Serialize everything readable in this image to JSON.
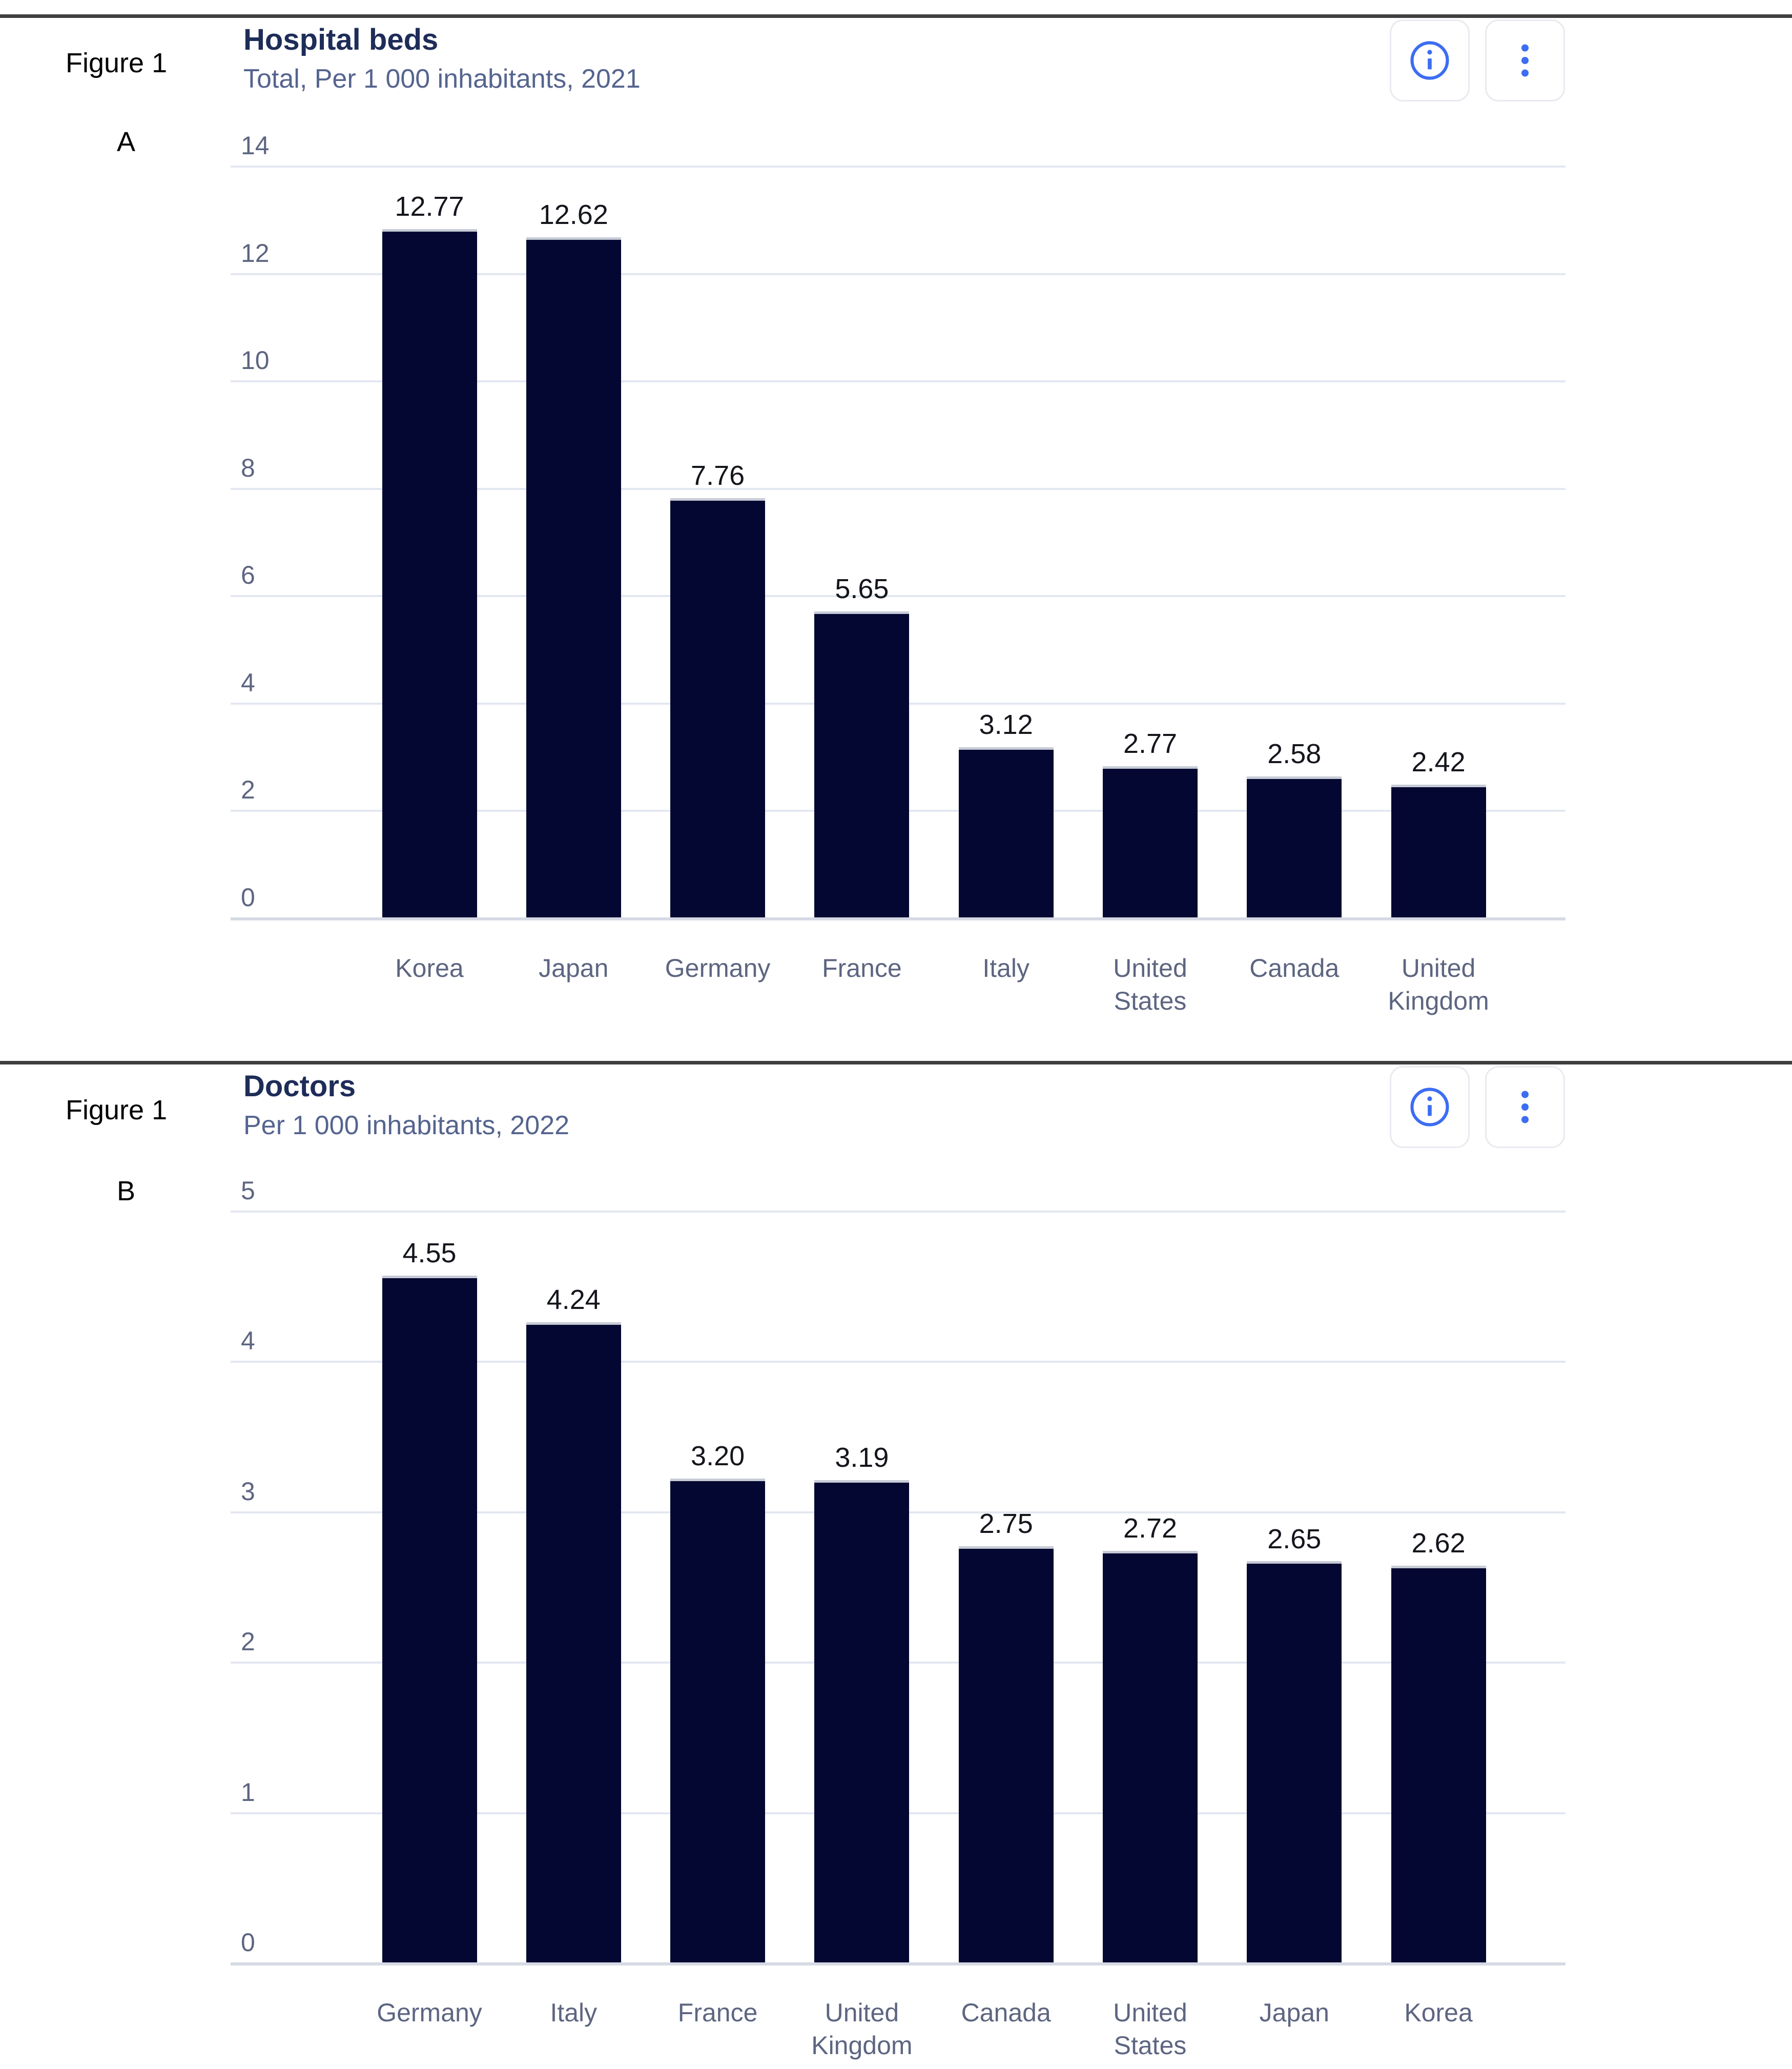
{
  "panels": [
    {
      "figure_label": "Figure 1",
      "panel_letter": "A",
      "title": "Hospital beds",
      "subtitle": "Total, Per 1 000 inhabitants, 2021"
    },
    {
      "figure_label": "Figure 1",
      "panel_letter": "B",
      "title": "Doctors",
      "subtitle": "Per 1 000 inhabitants, 2022"
    }
  ],
  "toolbar": {
    "info_icon": "info-circle-icon",
    "menu_icon": "kebab-menu-icon"
  },
  "colors": {
    "bar": "#030731",
    "accent_blue": "#3c6df2",
    "title_navy": "#1e2c58",
    "subtitle_slate": "#55648f",
    "axis_text": "#5d6581",
    "gridline": "#e3e7f0",
    "divider": "#3e3e3e",
    "value_label": "#14161c"
  },
  "chart_data": [
    {
      "type": "bar",
      "title": "Hospital beds",
      "subtitle": "Total, Per 1 000 inhabitants, 2021",
      "categories": [
        "Korea",
        "Japan",
        "Germany",
        "France",
        "Italy",
        "United States",
        "Canada",
        "United Kingdom"
      ],
      "values": [
        12.77,
        12.62,
        7.76,
        5.65,
        3.12,
        2.77,
        2.58,
        2.42
      ],
      "value_labels": [
        "12.77",
        "12.62",
        "7.76",
        "5.65",
        "3.12",
        "2.77",
        "2.58",
        "2.42"
      ],
      "xlabel": "",
      "ylabel": "",
      "ylim": [
        0,
        14
      ],
      "ytick_step": 2,
      "grid": true,
      "legend": "none",
      "bar_color": "#030731"
    },
    {
      "type": "bar",
      "title": "Doctors",
      "subtitle": "Per 1 000 inhabitants, 2022",
      "categories": [
        "Germany",
        "Italy",
        "France",
        "United Kingdom",
        "Canada",
        "United States",
        "Japan",
        "Korea"
      ],
      "values": [
        4.55,
        4.24,
        3.2,
        3.19,
        2.75,
        2.72,
        2.65,
        2.62
      ],
      "value_labels": [
        "4.55",
        "4.24",
        "3.20",
        "3.19",
        "2.75",
        "2.72",
        "2.65",
        "2.62"
      ],
      "xlabel": "",
      "ylabel": "",
      "ylim": [
        0,
        5
      ],
      "ytick_step": 1,
      "grid": true,
      "legend": "none",
      "bar_color": "#030731"
    }
  ]
}
